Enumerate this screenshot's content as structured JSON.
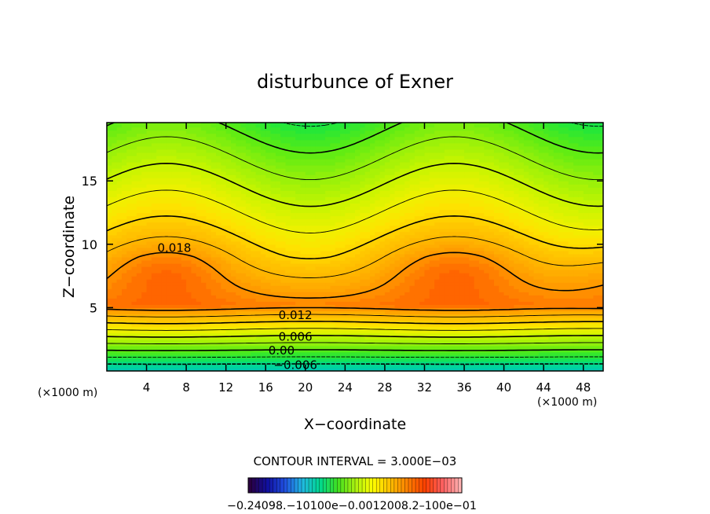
{
  "chart_data": {
    "type": "heatmap",
    "title": "disturbunce of Exner",
    "xlabel": "X−coordinate",
    "ylabel": "Z−coordinate",
    "x_unit_left": "(×1000 m)",
    "x_unit_right": "(×1000 m)",
    "xlim": [
      0,
      50
    ],
    "ylim": [
      0,
      19.6
    ],
    "x_ticks": [
      4,
      8,
      12,
      16,
      20,
      24,
      28,
      32,
      36,
      40,
      44,
      48
    ],
    "x_tick_labels": [
      "4",
      "8",
      "12",
      "16",
      "20",
      "24",
      "28",
      "32",
      "36",
      "40",
      "44",
      "48"
    ],
    "y_ticks": [
      5,
      10,
      15
    ],
    "y_tick_labels": [
      "5",
      "10",
      "15"
    ],
    "contour_interval_text": "CONTOUR INTERVAL = 3.000E−03",
    "contour_interval": 0.003,
    "contour_labels": [
      {
        "text": "0.018",
        "x": 6.8,
        "z": 9.7
      },
      {
        "text": "0.012",
        "x": 19.0,
        "z": 4.4
      },
      {
        "text": "0.006",
        "x": 19.0,
        "z": 2.7
      },
      {
        "text": "0.00",
        "x": 17.6,
        "z": 1.6
      },
      {
        "text": "−0.006",
        "x": 19.0,
        "z": 0.45
      }
    ],
    "features": {
      "max_centers": [
        {
          "x": 6,
          "z": 8,
          "value": 0.02
        },
        {
          "x": 35,
          "z": 8,
          "value": 0.02
        }
      ],
      "value_range": [
        -0.009,
        0.021
      ]
    },
    "colorbar_label": "−0.24098.−10100e−0.0012008.2–100e−01",
    "colorbar_colors": [
      "#2a0040",
      "#1010a0",
      "#2050e0",
      "#20b8e0",
      "#00d890",
      "#40e020",
      "#a8f010",
      "#ffff00",
      "#ffc000",
      "#ff8000",
      "#ff4000",
      "#ff6060",
      "#ffb0b0"
    ]
  }
}
